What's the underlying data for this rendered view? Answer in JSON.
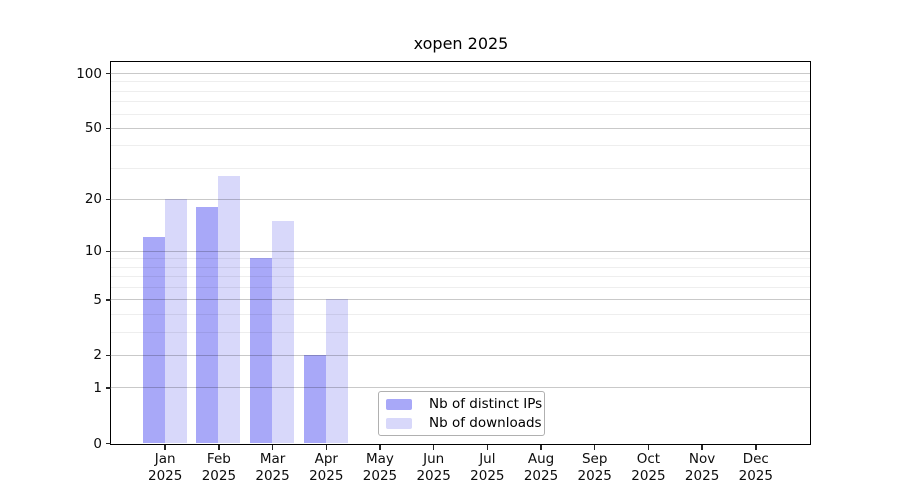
{
  "chart_data": {
    "type": "bar",
    "title": "xopen 2025",
    "categories": [
      "Jan",
      "Feb",
      "Mar",
      "Apr",
      "May",
      "Jun",
      "Jul",
      "Aug",
      "Sep",
      "Oct",
      "Nov",
      "Dec"
    ],
    "year": "2025",
    "series": [
      {
        "name": "Nb of distinct IPs",
        "color": "#a8a8f8",
        "values": [
          12,
          18,
          9,
          2,
          0,
          0,
          0,
          0,
          0,
          0,
          0,
          0
        ]
      },
      {
        "name": "Nb of downloads",
        "color": "#d8d8fa",
        "values": [
          20,
          27,
          15,
          5,
          0,
          0,
          0,
          0,
          0,
          0,
          0,
          0
        ]
      }
    ],
    "y_scale": "log10(1+v)",
    "y_tick_labels": [
      0,
      1,
      2,
      5,
      10,
      20,
      50,
      100
    ],
    "y_minor_gridlines": [
      3,
      4,
      6,
      7,
      8,
      9,
      30,
      40,
      60,
      70,
      80,
      90
    ],
    "ylim": [
      0,
      115
    ],
    "xlabel": "",
    "ylabel": "",
    "grid": "on",
    "legend_position": "lower center"
  }
}
